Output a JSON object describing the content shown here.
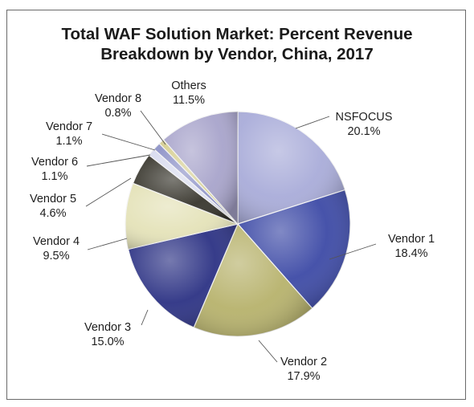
{
  "chart_data": {
    "type": "pie",
    "title": "Total WAF Solution Market: Percent Revenue",
    "subtitle": "Breakdown by Vendor, China, 2017",
    "slices": [
      {
        "name": "NSFOCUS",
        "value": 20.1,
        "label": "20.1%",
        "color": "#a9acd9"
      },
      {
        "name": "Vendor 1",
        "value": 18.4,
        "label": "18.4%",
        "color": "#3d4aa6"
      },
      {
        "name": "Vendor 2",
        "value": 17.9,
        "label": "17.9%",
        "color": "#b7b26c"
      },
      {
        "name": "Vendor 3",
        "value": 15.0,
        "label": "15.0%",
        "color": "#2c3284"
      },
      {
        "name": "Vendor 4",
        "value": 9.5,
        "label": "9.5%",
        "color": "#e4e2b8"
      },
      {
        "name": "Vendor 5",
        "value": 4.6,
        "label": "4.6%",
        "color": "#37352c"
      },
      {
        "name": "Vendor 6",
        "value": 1.1,
        "label": "1.1%",
        "color": "#d9dcef"
      },
      {
        "name": "Vendor 7",
        "value": 1.1,
        "label": "1.1%",
        "color": "#8e93c8"
      },
      {
        "name": "Vendor 8",
        "value": 0.8,
        "label": "0.8%",
        "color": "#d7d094"
      },
      {
        "name": "Others",
        "value": 11.5,
        "label": "11.5%",
        "color": "#a8a4cb"
      }
    ],
    "start": "12 o'clock",
    "direction": "clockwise",
    "legend": "none",
    "data_labels": "outside with leader lines"
  }
}
